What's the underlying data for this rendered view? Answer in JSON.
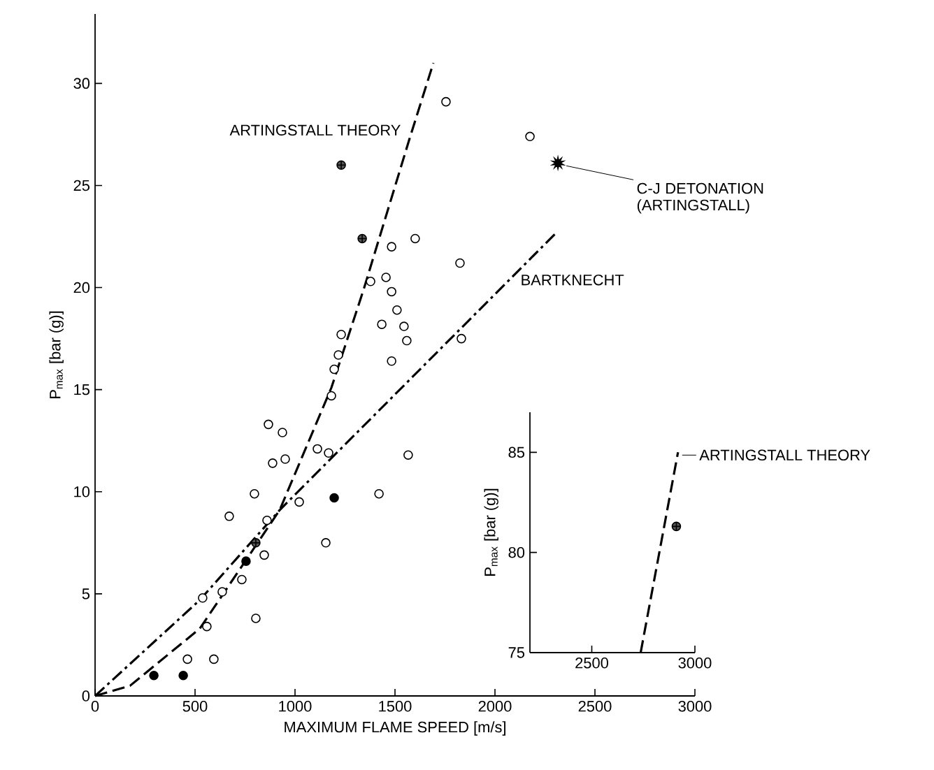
{
  "chart_data": [
    {
      "type": "scatter",
      "xlabel": "MAXIMUM FLAME SPEED [m/s]",
      "ylabel": "P$_{max}$ [bar (g)]",
      "xlim": [
        0,
        3000
      ],
      "ylim": [
        0,
        33.4
      ],
      "xticks": [
        0,
        500,
        1000,
        1500,
        2000,
        2500,
        3000
      ],
      "yticks": [
        0,
        5,
        10,
        15,
        20,
        25,
        30
      ],
      "series": [
        {
          "marker": "circle",
          "color": "#ffffff",
          "x": [
            1755,
            2175,
            1483,
            1601,
            1825,
            1378,
            1455,
            1483,
            1510,
            1434,
            1545,
            1559,
            1832,
            1231,
            1217,
            1196,
            1483,
            1182,
            867,
            937,
            888,
            951,
            1112,
            1168,
            1566,
            797,
            1021,
            1420,
            671,
            860,
            1154,
            846,
            734,
            636,
            538,
            804,
            559,
            462,
            594
          ],
          "values": [
            29.1,
            27.4,
            22.0,
            22.4,
            21.2,
            20.3,
            20.5,
            19.8,
            18.9,
            18.2,
            18.1,
            17.4,
            17.5,
            17.7,
            16.7,
            16.0,
            16.4,
            14.7,
            13.3,
            12.9,
            11.4,
            11.6,
            12.1,
            11.9,
            11.8,
            9.9,
            9.5,
            9.9,
            8.8,
            8.6,
            7.5,
            6.9,
            5.7,
            5.1,
            4.8,
            3.8,
            3.4,
            1.8,
            1.8
          ]
        },
        {
          "marker": "circle",
          "color": "#000000",
          "x": [
            1196,
            755,
            294,
            441
          ],
          "values": [
            9.7,
            6.6,
            1.0,
            1.0
          ]
        },
        {
          "marker": "cross",
          "color": "#555555",
          "x": [
            1231,
            1336,
            804
          ],
          "values": [
            26.0,
            22.4,
            7.5
          ]
        },
        {
          "marker": "star",
          "color": "#000000",
          "name": "C-J DETONATION (ARTINGSTALL)",
          "x": [
            2315
          ],
          "values": [
            26.1
          ]
        },
        {
          "type": "line",
          "marker": "none",
          "line_style": "dashed",
          "color": "#000000",
          "name": "ARTINGSTALL THEORY",
          "x": [
            0,
            175,
            524,
            923,
            1182,
            1343,
            1573,
            1692
          ],
          "values": [
            0,
            0.5,
            3.3,
            9.1,
            15.1,
            19.9,
            27.3,
            31.0
          ]
        },
        {
          "type": "line",
          "marker": "none",
          "line_style": "dashdot",
          "color": "#000000",
          "name": "BARTKNECHT",
          "x": [
            0,
            524,
            923,
            2308
          ],
          "values": [
            0,
            4.7,
            9.1,
            22.7
          ]
        }
      ]
    },
    {
      "type": "scatter",
      "ylabel": "P$_{max}$ [bar (g)]",
      "xlim": [
        2200,
        3000
      ],
      "ylim": [
        75,
        87
      ],
      "xticks": [
        2500,
        3000
      ],
      "yticks": [
        75,
        80,
        85
      ],
      "series": [
        {
          "type": "line",
          "marker": "none",
          "line_style": "dashed",
          "color": "#000000",
          "name": "ARTINGSTALL THEORY",
          "x": [
            2737,
            2918
          ],
          "values": [
            75,
            85
          ]
        },
        {
          "marker": "cross",
          "color": "#555555",
          "x": [
            2910
          ],
          "values": [
            81.3
          ]
        }
      ]
    }
  ]
}
